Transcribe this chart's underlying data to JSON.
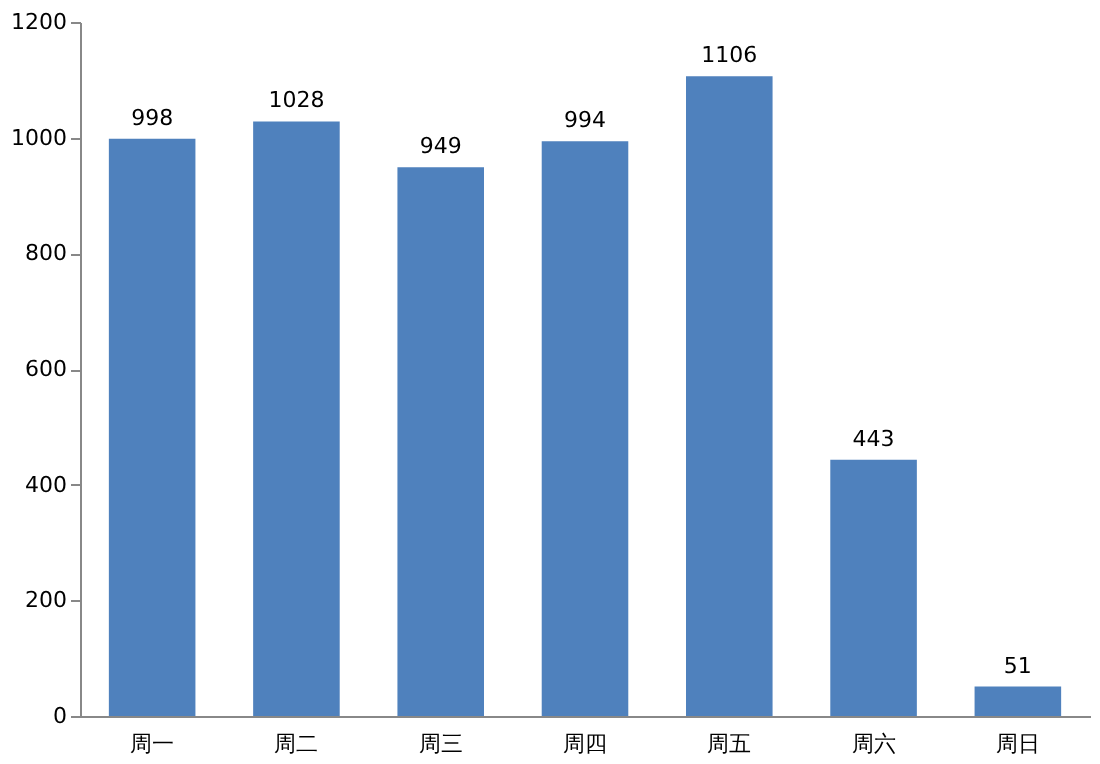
{
  "chart_data": {
    "type": "bar",
    "categories": [
      "周一",
      "周二",
      "周三",
      "周四",
      "周五",
      "周六",
      "周日"
    ],
    "values": [
      998,
      1028,
      949,
      994,
      1106,
      443,
      51
    ],
    "color": "#4f81bd",
    "ylim": [
      0,
      1200
    ],
    "yticks": [
      0,
      200,
      400,
      600,
      800,
      1000,
      1200
    ],
    "grid": false,
    "data_labels": true
  }
}
